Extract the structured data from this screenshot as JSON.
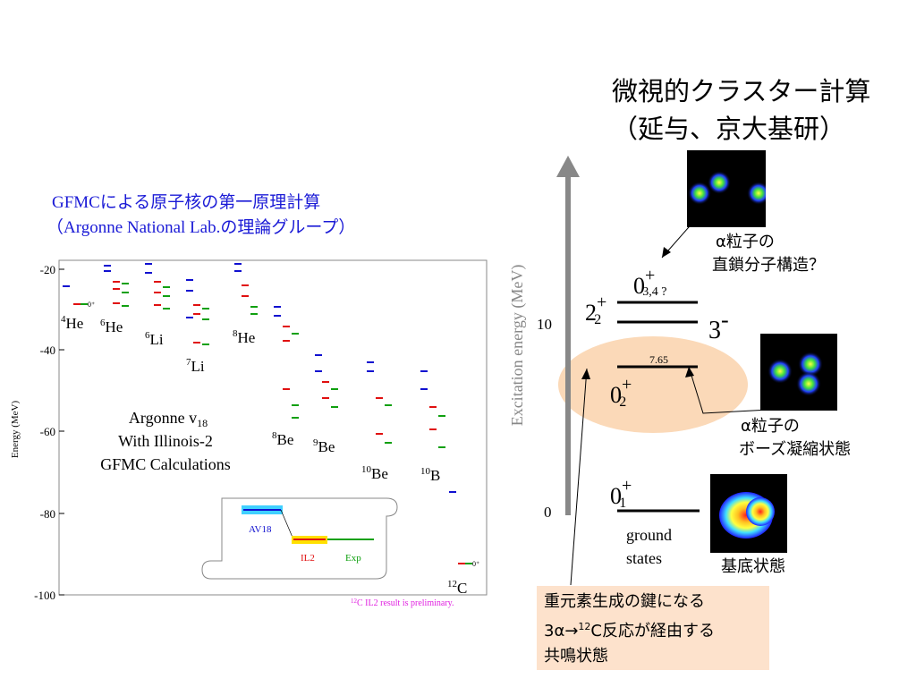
{
  "cluster": {
    "title_line1": "微視的クラスター計算",
    "title_line2": "（延与、京大基研）"
  },
  "gfmc": {
    "title_line1": "GFMCによる原子核の第一原理計算",
    "title_line2": "（Argonne National Lab.の理論グループ）",
    "plot_ylabel": "Energy (MeV)",
    "plot_yticks": [
      "-20",
      "-40",
      "-60",
      "-80",
      "-100"
    ],
    "nuclei": [
      {
        "mass": "4",
        "sym": "He"
      },
      {
        "mass": "6",
        "sym": "He"
      },
      {
        "mass": "6",
        "sym": "Li"
      },
      {
        "mass": "7",
        "sym": "Li"
      },
      {
        "mass": "8",
        "sym": "He"
      },
      {
        "mass": "8",
        "sym": "Be"
      },
      {
        "mass": "9",
        "sym": "Be"
      },
      {
        "mass": "10",
        "sym": "Be"
      },
      {
        "mass": "10",
        "sym": "B"
      },
      {
        "mass": "12",
        "sym": "C"
      }
    ],
    "model_line1": "Argonne v",
    "model_sub": "18",
    "model_line2": "With Illinois-2",
    "model_line3": "GFMC Calculations",
    "legend": {
      "av18": "AV18",
      "il2": "IL2",
      "exp": "Exp"
    },
    "note_mass": "12",
    "note_text": "C IL2 result is preliminary.",
    "colors": {
      "av18": "#1010d0",
      "il2": "#e01010",
      "exp": "#10a010",
      "av18_bg": "#40d0ff",
      "il2_bg": "#ffe000"
    }
  },
  "levels_diagram": {
    "axis_label": "Excitation energy (MeV)",
    "tick_10": "10",
    "tick_0": "0",
    "state_03": {
      "main": "0",
      "sup": "+",
      "sub": "3,4 ?"
    },
    "state_22": {
      "main": "2",
      "sup": "+",
      "sub": "2"
    },
    "state_3m": {
      "main": "3",
      "sup": "-"
    },
    "state_02": {
      "main": "0",
      "sup": "+",
      "sub": "2"
    },
    "state_01": {
      "main": "0",
      "sup": "+",
      "sub": "1"
    },
    "hoyle_energy": "7.65",
    "ground_line1": "ground",
    "ground_line2": "states",
    "label_chain_line1": "α粒子の",
    "label_chain_line2": "直鎖分子構造？",
    "label_bose_line1": "α粒子の",
    "label_bose_line2": "ボーズ凝縮状態",
    "label_ground": "基底状態",
    "callout_line1": "重元素生成の鍵になる",
    "callout_line2_pre": "3α→",
    "callout_line2_mass": "12",
    "callout_line2_post": "C反応が経由する",
    "callout_line3": "共鳴状態",
    "hoyle_ellipse_color": "#fbd9b8"
  }
}
